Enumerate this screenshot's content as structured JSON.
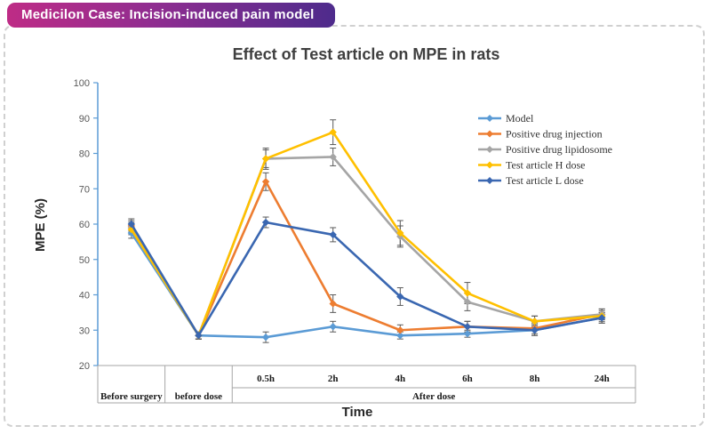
{
  "header": {
    "badge": "Medicilon Case: Incision-induced pain model",
    "badge_colors": [
      "#be2c86",
      "#4e2b8c"
    ]
  },
  "chart_data": {
    "type": "line",
    "title": "Effect of Test article on MPE in rats",
    "xlabel": "Time",
    "ylabel": "MPE (%)",
    "ylim": [
      20,
      100
    ],
    "ytick_labels": [
      "20",
      "30",
      "40",
      "50",
      "60",
      "70",
      "80",
      "90",
      "100"
    ],
    "grid": false,
    "legend_position": "upper-right-inside",
    "marker": "diamond",
    "axis_color": "#5b9bd5",
    "table_line_color": "#a6a6a6",
    "tick_label_color": "#595959",
    "error_bar_color": "#5a5a5a",
    "categories": [
      "Before surgery",
      "before dose",
      "0.5h",
      "2h",
      "4h",
      "6h",
      "8h",
      "24h"
    ],
    "axis_groups": [
      {
        "label": "Before surgery",
        "span": [
          0,
          0
        ]
      },
      {
        "label": "before dose",
        "span": [
          1,
          1
        ]
      },
      {
        "label": "After dose",
        "span": [
          2,
          7
        ]
      }
    ],
    "series": [
      {
        "name": "Model",
        "color": "#5b9bd5",
        "values": [
          57.5,
          28.5,
          28,
          31,
          28.5,
          29,
          30,
          33.5
        ],
        "errors": [
          1.5,
          1,
          1.5,
          1.5,
          1,
          1,
          1.5,
          1.5
        ]
      },
      {
        "name": "Positive drug injection",
        "color": "#ed7d31",
        "values": [
          59.5,
          28.5,
          72,
          37.5,
          30,
          31,
          30.5,
          34.5
        ],
        "errors": [
          1.5,
          1,
          2.5,
          2.5,
          1.5,
          1.5,
          1.5,
          1.5
        ]
      },
      {
        "name": "Positive drug lipidosome",
        "color": "#a5a5a5",
        "values": [
          59,
          28.5,
          78.5,
          79,
          56.5,
          38,
          32.5,
          34.5
        ],
        "errors": [
          1.5,
          1,
          2.5,
          2.5,
          3,
          2.5,
          1.5,
          1.5
        ]
      },
      {
        "name": "Test article H dose",
        "color": "#ffc000",
        "values": [
          58.5,
          28.5,
          78.5,
          86,
          57.5,
          40.5,
          32.5,
          34
        ],
        "errors": [
          1.5,
          1,
          3,
          3.5,
          3.5,
          3,
          1.5,
          1.5
        ]
      },
      {
        "name": "Test article L dose",
        "color": "#3a67b1",
        "values": [
          60,
          28.5,
          60.5,
          57,
          39.5,
          31,
          30,
          33.5
        ],
        "errors": [
          1.5,
          1,
          1.5,
          2,
          2.5,
          1.5,
          1.5,
          1.5
        ]
      }
    ]
  }
}
